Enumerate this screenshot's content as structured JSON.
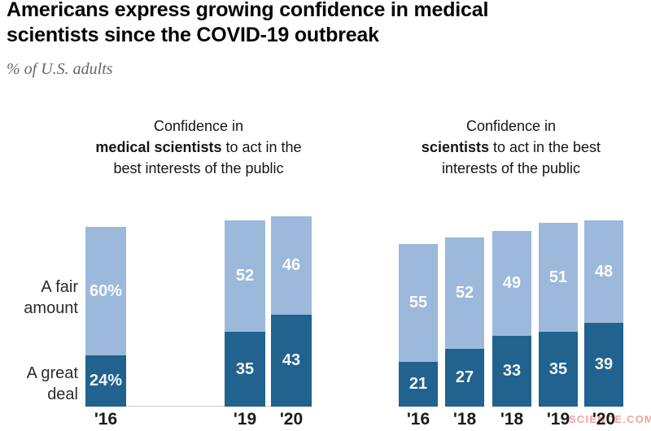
{
  "header": {
    "title_line1": "Americans express growing confidence in medical",
    "title_line2": "scientists since the COVID-19 outbreak",
    "subtitle": "% of U.S. adults"
  },
  "watermark": "SCIENCE.COM",
  "colors": {
    "fair_amount": "#9cb9db",
    "great_deal": "#21628e",
    "axis_line": "#c9c9c9",
    "watermark": "#f5a0a0"
  },
  "chart_data": [
    {
      "type": "bar",
      "stacked": true,
      "title": {
        "line1": "Confidence in",
        "bold": "medical scientists",
        "line2_rest": " to act in the",
        "line3": "best interests of the public"
      },
      "categories": [
        "'16",
        "'19",
        "'20"
      ],
      "series": [
        {
          "name": "A great deal",
          "color": "#21628e",
          "values": [
            24,
            35,
            43
          ],
          "labels": [
            "24%",
            "35",
            "43"
          ]
        },
        {
          "name": "A fair amount",
          "color": "#9cb9db",
          "values": [
            60,
            52,
            46
          ],
          "labels": [
            "60%",
            "52",
            "46"
          ]
        }
      ],
      "ylim": [
        0,
        100
      ],
      "unit": "%",
      "grid": false,
      "axis_line": true,
      "side_labels": true
    },
    {
      "type": "bar",
      "stacked": true,
      "title": {
        "line1": "Confidence in",
        "bold": "scientists",
        "line2_rest": " to act in the best",
        "line3": "interests of the public"
      },
      "categories": [
        "'16",
        "'18",
        "'18",
        "'19",
        "'20"
      ],
      "series": [
        {
          "name": "A great deal",
          "color": "#21628e",
          "values": [
            21,
            27,
            33,
            35,
            39
          ],
          "labels": [
            "21",
            "27",
            "33",
            "35",
            "39"
          ]
        },
        {
          "name": "A fair amount",
          "color": "#9cb9db",
          "values": [
            55,
            52,
            49,
            51,
            48
          ],
          "labels": [
            "55",
            "52",
            "49",
            "51",
            "48"
          ]
        }
      ],
      "ylim": [
        0,
        100
      ],
      "unit": "%",
      "grid": false,
      "axis_line": false,
      "side_labels": false
    }
  ]
}
